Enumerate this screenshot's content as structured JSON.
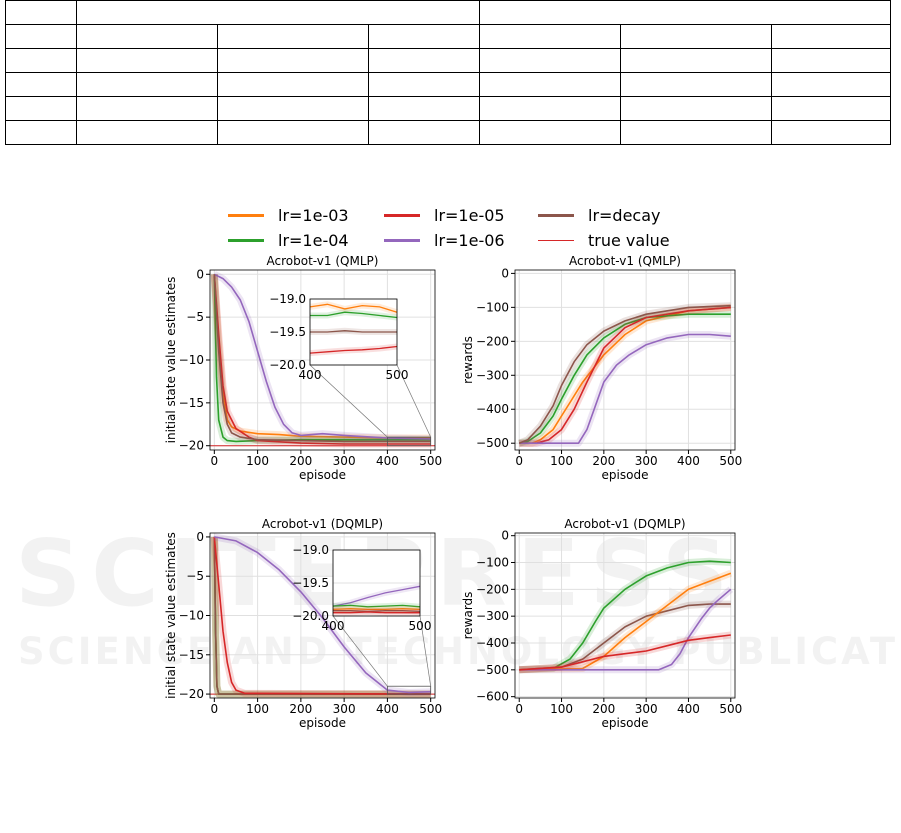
{
  "legend": [
    {
      "label": "lr=1e-03",
      "color": "#ff7f0e",
      "thin": false
    },
    {
      "label": "lr=1e-05",
      "color": "#d62728",
      "thin": false
    },
    {
      "label": "lr=decay",
      "color": "#8c564b",
      "thin": false
    },
    {
      "label": "lr=1e-04",
      "color": "#2ca02c",
      "thin": false
    },
    {
      "label": "lr=1e-06",
      "color": "#9467bd",
      "thin": false
    },
    {
      "label": "true value",
      "color": "#d62728",
      "thin": true
    }
  ],
  "watermark": {
    "big": "SCITEPRESS",
    "small": "SCIENCE AND TECHNOLOGY PUBLICATIONS"
  },
  "chart_data": [
    {
      "type": "line",
      "title": "Acrobot-v1 (QMLP)",
      "xlabel": "episode",
      "ylabel": "initial state value estimates",
      "xlim": [
        -10,
        510
      ],
      "ylim": [
        -20.5,
        0.5
      ],
      "xticks": [
        0,
        100,
        200,
        300,
        400,
        500
      ],
      "yticks": [
        0,
        -5,
        -10,
        -15,
        -20
      ],
      "grid": true,
      "true_value": -20,
      "series": [
        {
          "name": "lr=1e-03",
          "color": "#ff7f0e",
          "x": [
            0,
            10,
            20,
            30,
            40,
            60,
            100,
            150,
            200,
            300,
            400,
            500
          ],
          "values": [
            0,
            -8,
            -14,
            -17,
            -17.8,
            -18.3,
            -18.6,
            -18.7,
            -18.9,
            -19.0,
            -19.1,
            -19.1
          ]
        },
        {
          "name": "lr=1e-04",
          "color": "#2ca02c",
          "x": [
            0,
            5,
            10,
            20,
            30,
            50,
            100,
            200,
            300,
            400,
            500
          ],
          "values": [
            0,
            -12,
            -17,
            -19,
            -19.4,
            -19.5,
            -19.4,
            -19.3,
            -19.3,
            -19.3,
            -19.3
          ]
        },
        {
          "name": "lr=1e-05",
          "color": "#d62728",
          "x": [
            0,
            10,
            20,
            30,
            50,
            80,
            100,
            200,
            300,
            400,
            500
          ],
          "values": [
            0,
            -7,
            -13,
            -16,
            -18,
            -19,
            -19.4,
            -19.7,
            -19.8,
            -19.8,
            -19.8
          ]
        },
        {
          "name": "lr=1e-06",
          "color": "#9467bd",
          "x": [
            0,
            20,
            40,
            60,
            80,
            100,
            120,
            140,
            160,
            180,
            200,
            250,
            300,
            400,
            500
          ],
          "values": [
            0,
            -0.5,
            -1.5,
            -3,
            -5.5,
            -9,
            -12.5,
            -15.5,
            -17.5,
            -18.5,
            -18.8,
            -18.6,
            -18.8,
            -19.1,
            -19.2
          ]
        },
        {
          "name": "lr=decay",
          "color": "#8c564b",
          "x": [
            0,
            10,
            20,
            30,
            40,
            60,
            100,
            200,
            300,
            400,
            500
          ],
          "values": [
            0,
            -9,
            -15,
            -17.5,
            -18.5,
            -19,
            -19.3,
            -19.4,
            -19.5,
            -19.5,
            -19.5
          ]
        }
      ],
      "inset": {
        "xlim": [
          400,
          500
        ],
        "ylim": [
          -20.0,
          -19.0
        ],
        "xticks": [
          400,
          500
        ],
        "yticks": [
          -19.0,
          -19.5,
          -20.0
        ],
        "series": [
          {
            "name": "lr=1e-03",
            "color": "#ff7f0e",
            "x": [
              400,
              420,
              440,
              460,
              480,
              500
            ],
            "values": [
              -19.12,
              -19.08,
              -19.15,
              -19.1,
              -19.12,
              -19.2
            ]
          },
          {
            "name": "lr=1e-04",
            "color": "#2ca02c",
            "x": [
              400,
              420,
              440,
              460,
              480,
              500
            ],
            "values": [
              -19.25,
              -19.25,
              -19.2,
              -19.22,
              -19.25,
              -19.28
            ]
          },
          {
            "name": "lr=decay",
            "color": "#8c564b",
            "x": [
              400,
              420,
              440,
              460,
              480,
              500
            ],
            "values": [
              -19.5,
              -19.5,
              -19.48,
              -19.5,
              -19.5,
              -19.5
            ]
          },
          {
            "name": "lr=1e-05",
            "color": "#d62728",
            "x": [
              400,
              420,
              440,
              460,
              480,
              500
            ],
            "values": [
              -19.82,
              -19.8,
              -19.78,
              -19.77,
              -19.75,
              -19.72
            ]
          }
        ]
      }
    },
    {
      "type": "line",
      "title": "Acrobot-v1 (QMLP)",
      "xlabel": "episode",
      "ylabel": "rewards",
      "xlim": [
        -10,
        510
      ],
      "ylim": [
        -520,
        10
      ],
      "xticks": [
        0,
        100,
        200,
        300,
        400,
        500
      ],
      "yticks": [
        0,
        -100,
        -200,
        -300,
        -400,
        -500
      ],
      "grid": true,
      "series": [
        {
          "name": "lr=1e-03",
          "color": "#ff7f0e",
          "x": [
            0,
            30,
            50,
            80,
            100,
            120,
            150,
            200,
            250,
            300,
            400,
            500
          ],
          "values": [
            -500,
            -500,
            -490,
            -460,
            -420,
            -380,
            -320,
            -240,
            -180,
            -140,
            -110,
            -100
          ]
        },
        {
          "name": "lr=1e-04",
          "color": "#2ca02c",
          "x": [
            0,
            20,
            50,
            80,
            100,
            130,
            160,
            200,
            250,
            300,
            400,
            500
          ],
          "values": [
            -500,
            -495,
            -470,
            -420,
            -370,
            -300,
            -240,
            -190,
            -150,
            -130,
            -120,
            -120
          ]
        },
        {
          "name": "lr=1e-05",
          "color": "#d62728",
          "x": [
            0,
            40,
            70,
            100,
            130,
            160,
            200,
            250,
            300,
            400,
            500
          ],
          "values": [
            -500,
            -500,
            -490,
            -460,
            -400,
            -320,
            -220,
            -160,
            -130,
            -110,
            -100
          ]
        },
        {
          "name": "lr=1e-06",
          "color": "#9467bd",
          "x": [
            0,
            140,
            160,
            180,
            200,
            230,
            260,
            300,
            350,
            400,
            450,
            500
          ],
          "values": [
            -500,
            -500,
            -460,
            -390,
            -320,
            -270,
            -240,
            -210,
            -190,
            -180,
            -180,
            -185
          ]
        },
        {
          "name": "lr=decay",
          "color": "#8c564b",
          "x": [
            0,
            20,
            50,
            80,
            100,
            130,
            160,
            200,
            250,
            300,
            400,
            500
          ],
          "values": [
            -500,
            -490,
            -450,
            -390,
            -330,
            -260,
            -210,
            -170,
            -140,
            -120,
            -100,
            -95
          ]
        }
      ]
    },
    {
      "type": "line",
      "title": "Acrobot-v1 (DQMLP)",
      "xlabel": "episode",
      "ylabel": "initial state value estimates",
      "xlim": [
        -10,
        510
      ],
      "ylim": [
        -20.5,
        0.5
      ],
      "xticks": [
        0,
        100,
        200,
        300,
        400,
        500
      ],
      "yticks": [
        0,
        -5,
        -10,
        -15,
        -20
      ],
      "grid": true,
      "true_value": -20,
      "series": [
        {
          "name": "lr=1e-03",
          "color": "#ff7f0e",
          "x": [
            0,
            3,
            6,
            10,
            500
          ],
          "values": [
            0,
            -12,
            -19,
            -20,
            -20
          ]
        },
        {
          "name": "lr=1e-04",
          "color": "#2ca02c",
          "x": [
            0,
            3,
            6,
            10,
            500
          ],
          "values": [
            0,
            -12,
            -19,
            -20,
            -20
          ]
        },
        {
          "name": "lr=decay",
          "color": "#8c564b",
          "x": [
            0,
            3,
            6,
            10,
            500
          ],
          "values": [
            0,
            -12,
            -19,
            -20,
            -20
          ]
        },
        {
          "name": "lr=1e-05",
          "color": "#d62728",
          "x": [
            0,
            10,
            20,
            30,
            40,
            50,
            70,
            500
          ],
          "values": [
            0,
            -6,
            -12,
            -16,
            -18.5,
            -19.5,
            -19.9,
            -20
          ]
        },
        {
          "name": "lr=1e-06",
          "color": "#9467bd",
          "x": [
            0,
            50,
            100,
            150,
            200,
            250,
            300,
            350,
            400,
            450,
            500
          ],
          "values": [
            0,
            -0.5,
            -2,
            -4.2,
            -7,
            -10.3,
            -14,
            -17.3,
            -19.5,
            -19.8,
            -19.7
          ]
        }
      ],
      "inset": {
        "xlim": [
          400,
          500
        ],
        "ylim": [
          -20.0,
          -19.0
        ],
        "xticks": [
          400,
          500
        ],
        "yticks": [
          -19.0,
          -19.5,
          -20.0
        ],
        "series": [
          {
            "name": "lr=1e-06",
            "color": "#9467bd",
            "x": [
              400,
              420,
              440,
              460,
              480,
              500
            ],
            "values": [
              -19.85,
              -19.8,
              -19.72,
              -19.65,
              -19.6,
              -19.55
            ]
          },
          {
            "name": "lr=1e-04",
            "color": "#2ca02c",
            "x": [
              400,
              420,
              440,
              460,
              480,
              500
            ],
            "values": [
              -19.85,
              -19.84,
              -19.86,
              -19.85,
              -19.84,
              -19.86
            ]
          },
          {
            "name": "lr=1e-03",
            "color": "#ff7f0e",
            "x": [
              400,
              420,
              440,
              460,
              480,
              500
            ],
            "values": [
              -19.9,
              -19.89,
              -19.9,
              -19.9,
              -19.89,
              -19.9
            ]
          },
          {
            "name": "lr=decay",
            "color": "#8c564b",
            "x": [
              400,
              420,
              440,
              460,
              480,
              500
            ],
            "values": [
              -19.92,
              -19.92,
              -19.93,
              -19.92,
              -19.92,
              -19.93
            ]
          },
          {
            "name": "lr=1e-05",
            "color": "#d62728",
            "x": [
              400,
              420,
              440,
              460,
              480,
              500
            ],
            "values": [
              -19.95,
              -19.95,
              -19.94,
              -19.95,
              -19.95,
              -19.95
            ]
          }
        ]
      }
    },
    {
      "type": "line",
      "title": "Acrobot-v1 (DQMLP)",
      "xlabel": "episode",
      "ylabel": "rewards",
      "xlim": [
        -10,
        510
      ],
      "ylim": [
        -605,
        10
      ],
      "xticks": [
        0,
        100,
        200,
        300,
        400,
        500
      ],
      "yticks": [
        0,
        -100,
        -200,
        -300,
        -400,
        -500,
        -600
      ],
      "grid": true,
      "series": [
        {
          "name": "lr=1e-04",
          "color": "#2ca02c",
          "x": [
            0,
            80,
            120,
            150,
            180,
            200,
            250,
            300,
            350,
            400,
            450,
            500
          ],
          "values": [
            -500,
            -495,
            -460,
            -400,
            -320,
            -270,
            -200,
            -150,
            -120,
            -100,
            -95,
            -100
          ]
        },
        {
          "name": "lr=decay",
          "color": "#8c564b",
          "x": [
            0,
            100,
            150,
            200,
            250,
            300,
            350,
            400,
            450,
            500
          ],
          "values": [
            -500,
            -490,
            -460,
            -400,
            -340,
            -300,
            -280,
            -260,
            -255,
            -255
          ]
        },
        {
          "name": "lr=1e-03",
          "color": "#ff7f0e",
          "x": [
            0,
            150,
            200,
            250,
            300,
            350,
            400,
            450,
            500
          ],
          "values": [
            -500,
            -495,
            -450,
            -380,
            -320,
            -260,
            -200,
            -170,
            -140
          ]
        },
        {
          "name": "lr=1e-06",
          "color": "#9467bd",
          "x": [
            0,
            330,
            360,
            380,
            400,
            430,
            450,
            470,
            500
          ],
          "values": [
            -500,
            -500,
            -480,
            -440,
            -380,
            -310,
            -270,
            -240,
            -200
          ]
        },
        {
          "name": "lr=1e-05",
          "color": "#d62728",
          "x": [
            0,
            100,
            150,
            200,
            250,
            300,
            350,
            400,
            450,
            500
          ],
          "values": [
            -500,
            -490,
            -470,
            -450,
            -440,
            -430,
            -410,
            -390,
            -380,
            -370
          ]
        }
      ]
    }
  ]
}
